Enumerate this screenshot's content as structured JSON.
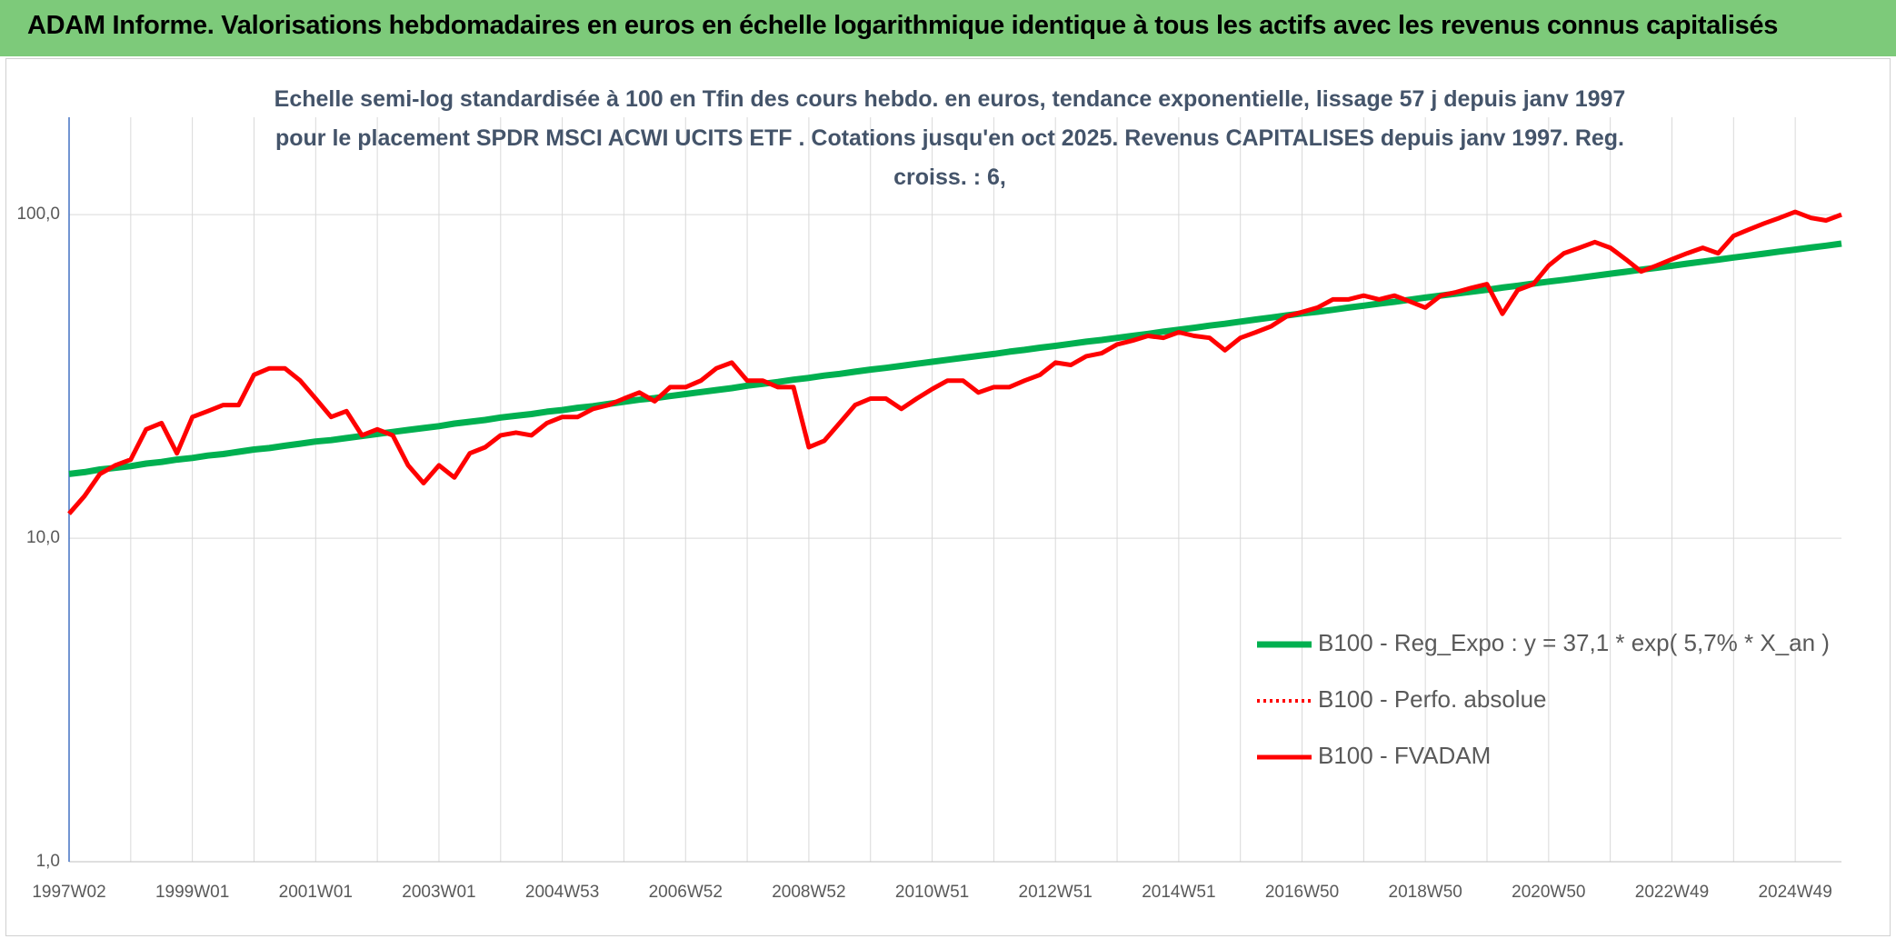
{
  "header": {
    "title": "ADAM Informe. Valorisations hebdomadaires en euros en échelle logarithmique identique à tous les actifs avec les revenus connus capitalisés"
  },
  "chart_data": {
    "type": "line",
    "subtitle": "Echelle semi-log standardisée à 100 en Tfin des cours hebdo. en euros, tendance exponentielle, lissage 57 j depuis janv 1997 pour le placement SPDR MSCI ACWI UCITS ETF . Cotations jusqu'en oct 2025. Revenus CAPITALISES depuis janv 1997. Reg. croiss. : 6,",
    "log_scale": true,
    "grid": true,
    "ylim": [
      1,
      200
    ],
    "yticks": [
      {
        "value": 1,
        "label": "1,0"
      },
      {
        "value": 10,
        "label": "10,0"
      },
      {
        "value": 100,
        "label": "100,0"
      }
    ],
    "categories": [
      "1997W02",
      null,
      null,
      null,
      null,
      null,
      null,
      null,
      "1999W01",
      null,
      null,
      null,
      null,
      null,
      null,
      null,
      "2001W01",
      null,
      null,
      null,
      null,
      null,
      null,
      null,
      "2003W01",
      null,
      null,
      null,
      null,
      null,
      null,
      null,
      "2004W53",
      null,
      null,
      null,
      null,
      null,
      null,
      null,
      "2006W52",
      null,
      null,
      null,
      null,
      null,
      null,
      null,
      "2008W52",
      null,
      null,
      null,
      null,
      null,
      null,
      null,
      "2010W51",
      null,
      null,
      null,
      null,
      null,
      null,
      null,
      "2012W51",
      null,
      null,
      null,
      null,
      null,
      null,
      null,
      "2014W51",
      null,
      null,
      null,
      null,
      null,
      null,
      null,
      "2016W50",
      null,
      null,
      null,
      null,
      null,
      null,
      null,
      "2018W50",
      null,
      null,
      null,
      null,
      null,
      null,
      null,
      "2020W50",
      null,
      null,
      null,
      null,
      null,
      null,
      null,
      "2022W49",
      null,
      null,
      null,
      null,
      null,
      null,
      null,
      "2024W49",
      null,
      null,
      null
    ],
    "series": [
      {
        "name": "B100 - Reg_Expo : y = 37,1 * exp( 5,7% *  X_an )",
        "color": "#00b050",
        "width": 7,
        "values": [
          15.8,
          16.0,
          16.3,
          16.5,
          16.7,
          17.0,
          17.2,
          17.5,
          17.7,
          18.0,
          18.2,
          18.5,
          18.8,
          19.0,
          19.3,
          19.6,
          19.9,
          20.1,
          20.4,
          20.7,
          21.0,
          21.3,
          21.6,
          21.9,
          22.2,
          22.6,
          22.9,
          23.2,
          23.6,
          23.9,
          24.2,
          24.6,
          24.9,
          25.3,
          25.6,
          26.0,
          26.4,
          26.8,
          27.1,
          27.5,
          27.9,
          28.3,
          28.7,
          29.1,
          29.6,
          30.0,
          30.4,
          30.9,
          31.3,
          31.8,
          32.2,
          32.7,
          33.2,
          33.6,
          34.1,
          34.6,
          35.1,
          35.6,
          36.1,
          36.6,
          37.1,
          37.7,
          38.2,
          38.8,
          39.3,
          39.9,
          40.5,
          41.0,
          41.6,
          42.2,
          42.8,
          43.5,
          44.1,
          44.7,
          45.4,
          46.0,
          46.7,
          47.4,
          48.1,
          48.8,
          49.5,
          50.1,
          50.8,
          51.6,
          52.3,
          53.1,
          53.8,
          54.6,
          55.4,
          56.2,
          57.0,
          57.8,
          58.6,
          59.5,
          60.3,
          61.2,
          62.1,
          62.9,
          63.8,
          64.7,
          65.7,
          66.6,
          67.6,
          68.5,
          69.5,
          70.6,
          71.6,
          72.6,
          73.7,
          74.7,
          75.8,
          76.9,
          78.0,
          79.1,
          80.2,
          81.4
        ]
      },
      {
        "name": "B100 - Perfo. absolue",
        "color": "#ff0000",
        "width": 4,
        "dash": "dotted",
        "values": [
          null,
          null,
          null,
          null,
          null,
          null,
          null,
          null,
          null,
          null,
          null,
          null,
          null,
          null,
          null,
          null,
          null,
          null,
          null,
          null,
          null,
          null,
          null,
          null,
          null,
          null,
          null,
          null,
          null,
          null,
          null,
          null,
          null,
          null,
          null,
          null,
          null,
          null,
          null,
          null,
          null,
          null,
          null,
          null,
          null,
          null,
          null,
          null,
          null,
          null,
          null,
          null,
          null,
          null,
          null,
          null,
          null,
          null,
          null,
          null,
          null,
          null,
          null,
          null,
          null,
          null,
          null,
          null,
          null,
          null,
          null,
          null,
          null,
          null,
          null,
          null,
          null,
          null,
          null,
          null,
          null,
          null,
          null,
          null,
          null,
          null,
          null,
          null,
          null,
          null,
          null,
          null,
          null,
          null,
          null,
          null,
          null,
          null,
          null,
          null,
          null,
          null,
          null,
          null,
          null,
          null,
          null,
          null,
          null,
          null,
          null,
          null,
          null,
          null,
          null,
          null
        ]
      },
      {
        "name": "B100 - FVADAM",
        "color": "#ff0000",
        "width": 5,
        "values": [
          11.9,
          13.5,
          15.8,
          16.8,
          17.5,
          21.7,
          22.7,
          18.3,
          23.7,
          24.7,
          25.8,
          25.8,
          32,
          33.5,
          33.5,
          30.7,
          27,
          23.7,
          24.7,
          20.8,
          21.7,
          20.8,
          16.8,
          14.8,
          16.8,
          15.4,
          18.3,
          19.1,
          20.8,
          21.2,
          20.8,
          22.7,
          23.7,
          23.7,
          25.1,
          25.8,
          27,
          28.2,
          26.5,
          29.3,
          29.3,
          30.7,
          33.5,
          34.9,
          30.7,
          30.7,
          29.3,
          29.3,
          19.1,
          20,
          22.7,
          25.8,
          27,
          27,
          25.1,
          27,
          28.9,
          30.7,
          30.7,
          28.2,
          29.3,
          29.3,
          30.7,
          32,
          34.9,
          34.3,
          36.5,
          37.3,
          39.7,
          40.8,
          42.2,
          41.6,
          43.3,
          42.2,
          41.6,
          38.1,
          41.6,
          43.3,
          45.2,
          48.5,
          50,
          51.6,
          54.7,
          54.7,
          56.2,
          54.7,
          56.2,
          53.9,
          51.6,
          56.2,
          57.6,
          59.4,
          61,
          49.4,
          58.5,
          61,
          69.6,
          76,
          79,
          82.3,
          79,
          72.8,
          66.7,
          69.6,
          72.8,
          76,
          79,
          76,
          86,
          90,
          94,
          97.8,
          102,
          97.8,
          96,
          100
        ]
      }
    ]
  }
}
